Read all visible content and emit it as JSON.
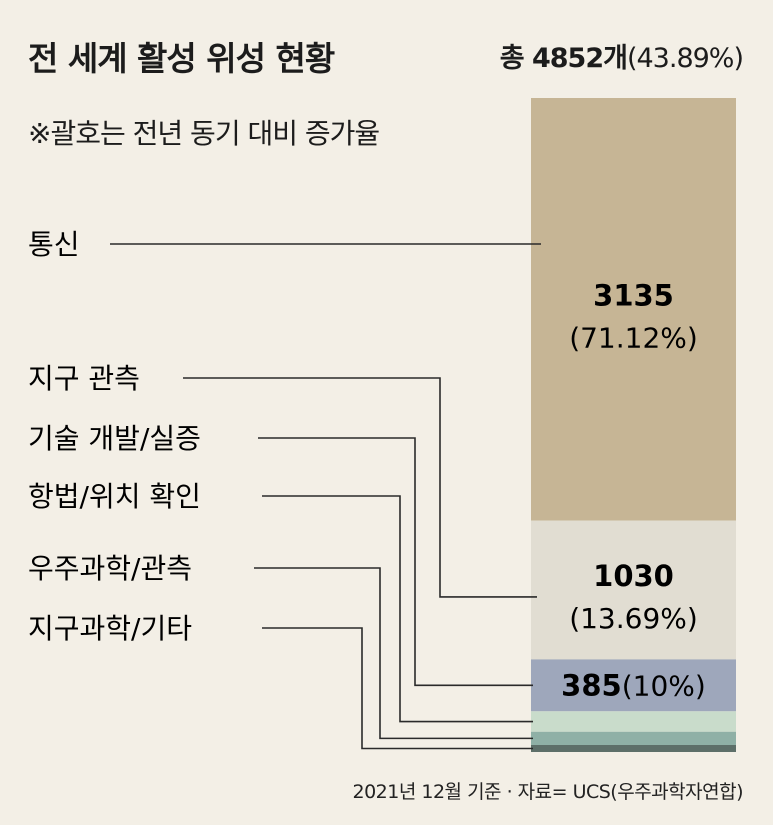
{
  "header": {
    "title": "전 세계 활성 위성 현황",
    "total_prefix": "총 4852개",
    "total_pct": "(43.89%)",
    "note": "※괄호는 전년 동기 대비 증가율"
  },
  "footer": {
    "source": "2021년 12월 기준 · 자료= UCS(우주과학자연합)"
  },
  "chart_data": {
    "type": "bar",
    "stacked": true,
    "orientation": "vertical",
    "title": "전 세계 활성 위성 현황",
    "total": 4852,
    "total_growth": "43.89%",
    "categories": [
      "통신",
      "지구 관측",
      "기술 개발/실증",
      "항법/위치 확인",
      "우주과학/관측",
      "지구과학/기타"
    ],
    "values": [
      3135,
      1030,
      385,
      152,
      98,
      52
    ],
    "value_labels": [
      "3135",
      "1030",
      "385",
      "",
      "",
      ""
    ],
    "growth_labels": [
      "(71.12%)",
      "(13.69%)",
      "(10%)",
      "",
      "",
      ""
    ],
    "colors": [
      "#c6b595",
      "#e1ddd2",
      "#9ea7bb",
      "#c9dccb",
      "#8fb0a6",
      "#5d6f69"
    ],
    "legend": "none",
    "grid": false
  }
}
